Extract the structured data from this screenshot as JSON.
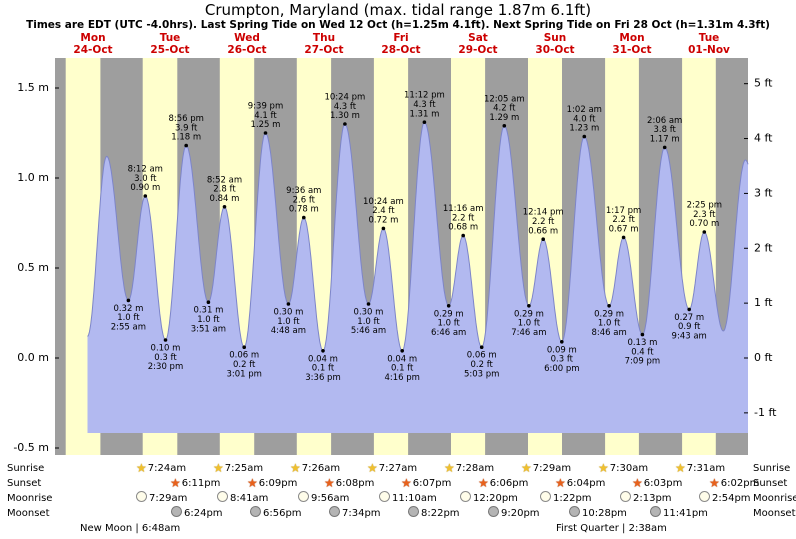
{
  "title": "Crumpton, Maryland (max. tidal range 1.87m 6.1ft)",
  "subtitle": "Times are EDT (UTC -4.0hrs). Last Spring Tide on Wed 12 Oct (h=1.25m 4.1ft). Next Spring Tide on Fri 28 Oct (h=1.31m 4.3ft)",
  "colors": {
    "day_label": "#cc0000",
    "plot_bg": "#9e9e9e",
    "daylight_band": "#ffffcc",
    "tide_fill": "#b2b9f0",
    "tide_stroke": "#7d85c9",
    "annotation": "#000000"
  },
  "days": [
    {
      "dow": "Mon",
      "date": "24-Oct"
    },
    {
      "dow": "Tue",
      "date": "25-Oct"
    },
    {
      "dow": "Wed",
      "date": "26-Oct"
    },
    {
      "dow": "Thu",
      "date": "27-Oct"
    },
    {
      "dow": "Fri",
      "date": "28-Oct"
    },
    {
      "dow": "Sat",
      "date": "29-Oct"
    },
    {
      "dow": "Sun",
      "date": "30-Oct"
    },
    {
      "dow": "Mon",
      "date": "31-Oct"
    },
    {
      "dow": "Tue",
      "date": "01-Nov"
    }
  ],
  "y_axis_left": {
    "labels": [
      "1.5 m",
      "1.0 m",
      "0.5 m",
      "0.0 m",
      "-0.5 m"
    ],
    "values_m": [
      1.5,
      1.0,
      0.5,
      0.0,
      -0.5
    ]
  },
  "y_axis_right": {
    "labels": [
      "5 ft",
      "4 ft",
      "3 ft",
      "2 ft",
      "1 ft",
      "0 ft",
      "-1 ft"
    ],
    "values_ft": [
      5,
      4,
      3,
      2,
      1,
      0,
      -1
    ]
  },
  "chart_data": {
    "type": "area",
    "title": "Crumpton, Maryland tide curve",
    "ylabel_left": "m",
    "ylabel_right": "ft",
    "ylim_m": [
      -0.54,
      1.67
    ],
    "days_shown": 9,
    "note": "t = hours after Mon 24-Oct 00:00 EDT; labeled=false points are curve-edge extremes visible but not annotated in the image",
    "events": [
      {
        "t": -9.83,
        "m": 0.12,
        "type": "low",
        "labeled": false
      },
      {
        "t": -3.83,
        "m": 1.12,
        "type": "high",
        "labeled": false
      },
      {
        "t": 2.92,
        "m": 0.32,
        "ft": "1.0",
        "time": "2:55 am",
        "type": "low",
        "labeled": true
      },
      {
        "t": 8.2,
        "m": 0.9,
        "ft": "3.0",
        "time": "8:12 am",
        "type": "high",
        "labeled": true
      },
      {
        "t": 14.5,
        "m": 0.1,
        "ft": "0.3",
        "time": "2:30 pm",
        "type": "low",
        "labeled": true
      },
      {
        "t": 20.93,
        "m": 1.18,
        "ft": "3.9",
        "time": "8:56 pm",
        "type": "high",
        "labeled": true
      },
      {
        "t": 27.85,
        "m": 0.31,
        "ft": "1.0",
        "time": "3:51 am",
        "type": "low",
        "labeled": true
      },
      {
        "t": 32.87,
        "m": 0.84,
        "ft": "2.8",
        "time": "8:52 am",
        "type": "high",
        "labeled": true
      },
      {
        "t": 39.02,
        "m": 0.06,
        "ft": "0.2",
        "time": "3:01 pm",
        "type": "low",
        "labeled": true
      },
      {
        "t": 45.65,
        "m": 1.25,
        "ft": "4.1",
        "time": "9:39 pm",
        "type": "high",
        "labeled": true
      },
      {
        "t": 52.8,
        "m": 0.3,
        "ft": "1.0",
        "time": "4:48 am",
        "type": "low",
        "labeled": true
      },
      {
        "t": 57.6,
        "m": 0.78,
        "ft": "2.6",
        "time": "9:36 am",
        "type": "high",
        "labeled": true
      },
      {
        "t": 63.6,
        "m": 0.04,
        "ft": "0.1",
        "time": "3:36 pm",
        "type": "low",
        "labeled": true
      },
      {
        "t": 70.4,
        "m": 1.3,
        "ft": "4.3",
        "time": "10:24 pm",
        "type": "high",
        "labeled": true
      },
      {
        "t": 77.77,
        "m": 0.3,
        "ft": "1.0",
        "time": "5:46 am",
        "type": "low",
        "labeled": true
      },
      {
        "t": 82.4,
        "m": 0.72,
        "ft": "2.4",
        "time": "10:24 am",
        "type": "high",
        "labeled": true
      },
      {
        "t": 88.27,
        "m": 0.04,
        "ft": "0.1",
        "time": "4:16 pm",
        "type": "low",
        "labeled": true
      },
      {
        "t": 95.2,
        "m": 1.31,
        "ft": "4.3",
        "time": "11:12 pm",
        "type": "high",
        "labeled": true
      },
      {
        "t": 102.77,
        "m": 0.29,
        "ft": "1.0",
        "time": "6:46 am",
        "type": "low",
        "labeled": true
      },
      {
        "t": 107.27,
        "m": 0.68,
        "ft": "2.2",
        "time": "11:16 am",
        "type": "high",
        "labeled": true
      },
      {
        "t": 113.05,
        "m": 0.06,
        "ft": "0.2",
        "time": "5:03 pm",
        "type": "low",
        "labeled": true
      },
      {
        "t": 120.08,
        "m": 1.29,
        "ft": "4.2",
        "time": "12:05 am",
        "type": "high",
        "labeled": true
      },
      {
        "t": 127.77,
        "m": 0.29,
        "ft": "1.0",
        "time": "7:46 am",
        "type": "low",
        "labeled": true
      },
      {
        "t": 132.23,
        "m": 0.66,
        "ft": "2.2",
        "time": "12:14 pm",
        "type": "high",
        "labeled": true
      },
      {
        "t": 138.0,
        "m": 0.09,
        "ft": "0.3",
        "time": "6:00 pm",
        "type": "low",
        "labeled": true
      },
      {
        "t": 145.03,
        "m": 1.23,
        "ft": "4.0",
        "time": "1:02 am",
        "type": "high",
        "labeled": true
      },
      {
        "t": 152.77,
        "m": 0.29,
        "ft": "1.0",
        "time": "8:46 am",
        "type": "low",
        "labeled": true
      },
      {
        "t": 157.28,
        "m": 0.67,
        "ft": "2.2",
        "time": "1:17 pm",
        "type": "high",
        "labeled": true
      },
      {
        "t": 163.15,
        "m": 0.13,
        "ft": "0.4",
        "time": "7:09 pm",
        "type": "low",
        "labeled": true
      },
      {
        "t": 170.1,
        "m": 1.17,
        "ft": "3.8",
        "time": "2:06 am",
        "type": "high",
        "labeled": true
      },
      {
        "t": 177.72,
        "m": 0.27,
        "ft": "0.9",
        "time": "9:43 am",
        "type": "low",
        "labeled": true
      },
      {
        "t": 182.42,
        "m": 0.7,
        "ft": "2.3",
        "time": "2:25 pm",
        "type": "high",
        "labeled": true
      },
      {
        "t": 188.35,
        "m": 0.15,
        "type": "low",
        "labeled": false
      },
      {
        "t": 195.25,
        "m": 1.1,
        "type": "high",
        "labeled": false
      },
      {
        "t": 202.7,
        "m": 0.26,
        "type": "low",
        "labeled": false
      }
    ]
  },
  "astro": {
    "row_labels": [
      "Sunrise",
      "Sunset",
      "Moonrise",
      "Moonset"
    ],
    "sunrise": [
      "7:24am",
      "7:25am",
      "7:26am",
      "7:27am",
      "7:28am",
      "7:29am",
      "7:30am",
      "7:31am"
    ],
    "sunset": [
      "6:11pm",
      "6:09pm",
      "6:08pm",
      "6:07pm",
      "6:06pm",
      "6:04pm",
      "6:03pm",
      "6:02pm"
    ],
    "moonrise": [
      "7:29am",
      "8:41am",
      "9:56am",
      "11:10am",
      "12:20pm",
      "1:22pm",
      "2:13pm",
      "2:54pm"
    ],
    "moonset": [
      "6:24pm",
      "6:56pm",
      "7:34pm",
      "8:22pm",
      "9:20pm",
      "10:28pm",
      "11:41pm"
    ],
    "phases": [
      "New Moon | 6:48am",
      "First Quarter | 2:38am"
    ]
  }
}
